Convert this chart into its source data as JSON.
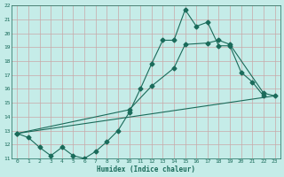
{
  "title": "",
  "xlabel": "Humidex (Indice chaleur)",
  "bg_color": "#c5ece8",
  "grid_color": "#c8a8a8",
  "line_color": "#1a6b5a",
  "xlim": [
    -0.5,
    23.5
  ],
  "ylim": [
    11,
    22
  ],
  "xticks": [
    0,
    1,
    2,
    3,
    4,
    5,
    6,
    7,
    8,
    9,
    10,
    11,
    12,
    13,
    14,
    15,
    16,
    17,
    18,
    19,
    20,
    21,
    22,
    23
  ],
  "yticks": [
    11,
    12,
    13,
    14,
    15,
    16,
    17,
    18,
    19,
    20,
    21,
    22
  ],
  "line1_x": [
    0,
    1,
    2,
    3,
    4,
    5,
    6,
    7,
    8,
    9,
    10,
    11,
    12,
    13,
    14,
    15,
    16,
    17,
    18,
    19,
    20,
    21,
    22
  ],
  "line1_y": [
    12.8,
    12.5,
    11.8,
    11.2,
    11.8,
    11.2,
    11.0,
    11.5,
    12.2,
    13.0,
    14.3,
    16.0,
    17.8,
    19.5,
    19.5,
    21.7,
    20.5,
    20.8,
    19.1,
    19.1,
    17.2,
    16.5,
    15.5
  ],
  "line2_x": [
    0,
    23
  ],
  "line2_y": [
    12.8,
    15.5
  ],
  "line3_x": [
    0,
    10,
    12,
    14,
    15,
    17,
    18,
    19,
    22,
    23
  ],
  "line3_y": [
    12.8,
    14.5,
    16.2,
    17.5,
    19.2,
    19.3,
    19.5,
    19.2,
    15.7,
    15.5
  ],
  "marker_size": 2.5,
  "line_width": 0.8
}
